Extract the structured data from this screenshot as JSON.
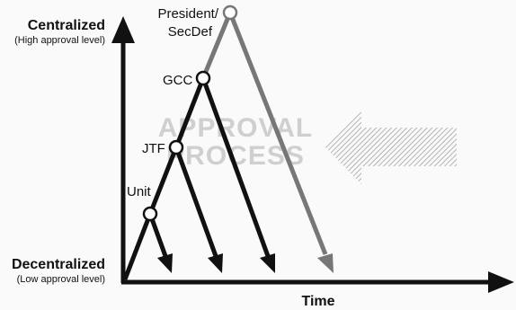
{
  "y_axis": {
    "top_title": "Centralized",
    "top_subtitle": "(High approval level)",
    "bottom_title": "Decentralized",
    "bottom_subtitle": "(Low approval level)"
  },
  "x_axis": {
    "title": "Time"
  },
  "nodes": [
    {
      "id": "unit",
      "label": "Unit"
    },
    {
      "id": "jtf",
      "label": "JTF"
    },
    {
      "id": "gcc",
      "label": "GCC"
    },
    {
      "id": "president",
      "label_line1": "President/",
      "label_line2": "SecDef"
    }
  ],
  "watermark": {
    "line1": "APPROVAL",
    "line2": "PROCESS"
  },
  "colors": {
    "axis": "#111111",
    "escalation_line": "#111111",
    "upper_line": "#777777",
    "node_fill": "#ffffff",
    "watermark": "#cfcfcf",
    "hatched_arrow": "#b3b3b3"
  }
}
